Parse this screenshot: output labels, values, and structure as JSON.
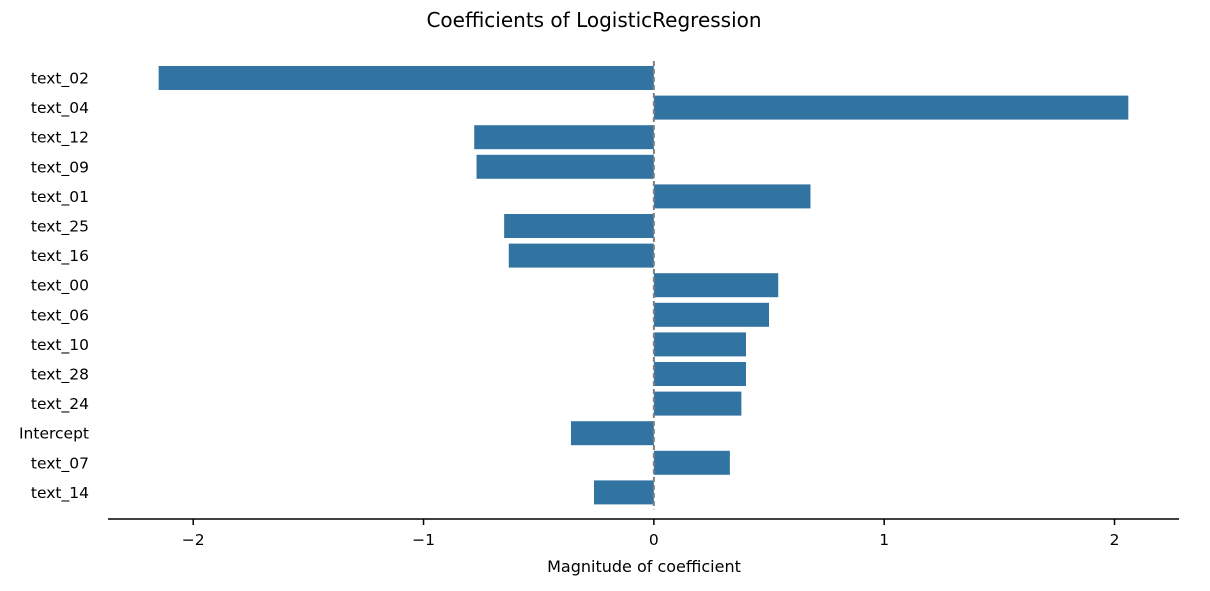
{
  "chart_data": {
    "type": "bar",
    "orientation": "horizontal",
    "title": "Coefficients of LogisticRegression",
    "xlabel": "Magnitude of coefficient",
    "ylabel": "",
    "categories": [
      "text_02",
      "text_04",
      "text_12",
      "text_09",
      "text_01",
      "text_25",
      "text_16",
      "text_00",
      "text_06",
      "text_10",
      "text_28",
      "text_24",
      "Intercept",
      "text_07",
      "text_14"
    ],
    "values": [
      -2.15,
      2.06,
      -0.78,
      -0.77,
      0.68,
      -0.65,
      -0.63,
      0.54,
      0.5,
      0.4,
      0.4,
      0.38,
      -0.36,
      0.33,
      -0.26
    ],
    "xlim": [
      -2.37,
      2.28
    ],
    "xticks": [
      -2,
      -1,
      0,
      1,
      2
    ],
    "xtick_labels": [
      "−2",
      "−1",
      "0",
      "1",
      "2"
    ],
    "zero_line": true,
    "grid": false,
    "bar_color": "#3274a1",
    "zero_line_color": "#808080"
  }
}
